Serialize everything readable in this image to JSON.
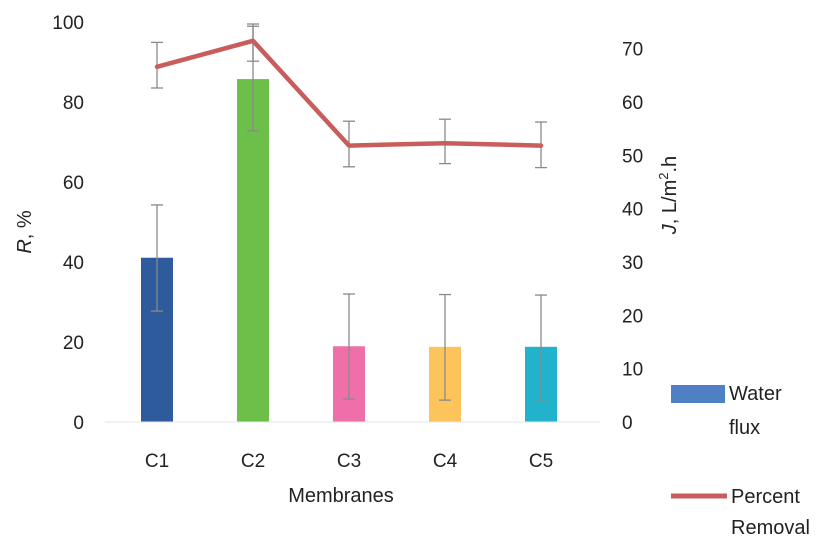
{
  "chart_data": {
    "type": "bar",
    "categories": [
      "C1",
      "C2",
      "C3",
      "C4",
      "C5"
    ],
    "xlabel": "Membranes",
    "ylabel_left": {
      "italic": "R",
      "rest": ", %"
    },
    "ylabel_right": {
      "italic": "J",
      "rest": ", L/m",
      "sup": "2",
      "tail": ".h"
    },
    "ylim_left": [
      0,
      100
    ],
    "ylim_right": [
      0,
      75
    ],
    "yticks_left": [
      "0",
      "20",
      "40",
      "60",
      "80",
      "100"
    ],
    "yticks_right": [
      "0",
      "10",
      "20",
      "30",
      "40",
      "50",
      "60",
      "70"
    ],
    "grid": false,
    "legend_position": "bottom-right",
    "series": [
      {
        "name": "Water flux",
        "legend_lines": [
          "Water",
          "flux"
        ],
        "type": "bar",
        "axis": "right",
        "values": [
          30.8,
          64.3,
          14.2,
          14.1,
          14.1
        ],
        "err_low": [
          20.8,
          54.6,
          4.3,
          4.1,
          3.9
        ],
        "err_high": [
          40.7,
          74.2,
          24.0,
          23.9,
          23.8
        ],
        "colors": [
          "#2e5b9c",
          "#6cc04a",
          "#ee6fa9",
          "#fcc45a",
          "#21b3cc"
        ],
        "legend_color": "#4f80c4"
      },
      {
        "name": "Percent Removal",
        "legend_lines": [
          "Percent",
          "Removal"
        ],
        "type": "line",
        "axis": "left",
        "values": [
          88.8,
          95.3,
          69.1,
          69.7,
          69.1
        ],
        "err_low": [
          83.5,
          90.2,
          63.8,
          64.6,
          63.6
        ],
        "err_high": [
          94.9,
          99.5,
          75.2,
          75.7,
          75.0
        ],
        "color": "#c95c5c"
      }
    ]
  }
}
